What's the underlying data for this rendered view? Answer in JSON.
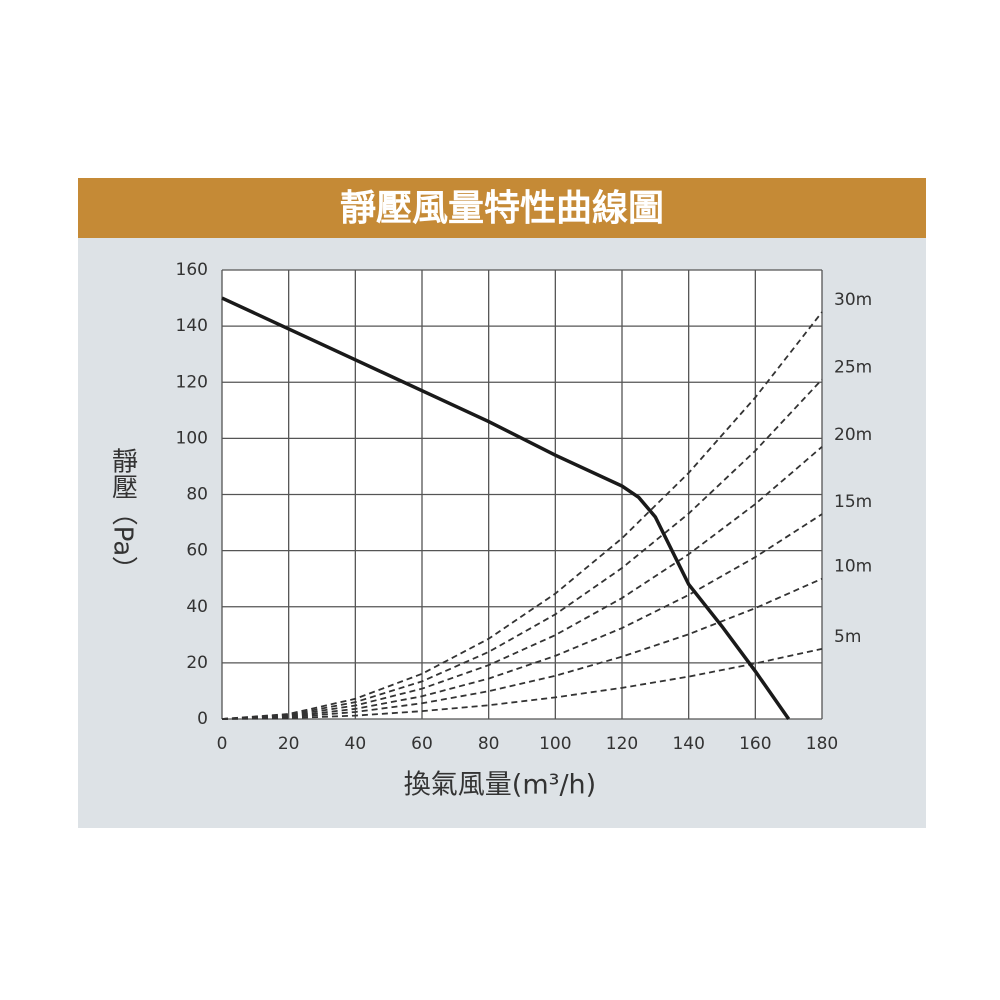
{
  "chart_data": {
    "type": "line",
    "title": "靜壓風量特性曲線圖",
    "x_label": "換氣風量(m³/h)",
    "y_label": "靜壓（Pa）",
    "xlim": [
      0,
      180
    ],
    "ylim": [
      0,
      160
    ],
    "xticks": [
      0,
      20,
      40,
      60,
      80,
      100,
      120,
      140,
      160,
      180
    ],
    "yticks": [
      0,
      20,
      40,
      60,
      80,
      100,
      120,
      140,
      160
    ],
    "grid": true,
    "main_curve": {
      "color": "#1a1a1a",
      "x": [
        0,
        20,
        40,
        60,
        80,
        100,
        120,
        125,
        130,
        135,
        140,
        150,
        160,
        170
      ],
      "values": [
        150,
        139,
        128,
        117,
        106,
        94,
        83,
        79,
        72,
        60,
        48,
        33,
        17,
        0
      ]
    },
    "series": [
      {
        "name": "30m",
        "color": "#333333",
        "style": "dashed",
        "x": [
          0,
          20,
          40,
          60,
          80,
          100,
          120,
          140,
          160,
          180
        ],
        "values": [
          0,
          1.8,
          7.2,
          16.1,
          28.6,
          44.7,
          64.4,
          87.7,
          114.6,
          145
        ]
      },
      {
        "name": "25m",
        "color": "#333333",
        "style": "dashed",
        "x": [
          0,
          20,
          40,
          60,
          80,
          100,
          120,
          140,
          160,
          180
        ],
        "values": [
          0,
          1.5,
          6.0,
          13.4,
          23.9,
          37.3,
          53.8,
          73.2,
          95.6,
          121
        ]
      },
      {
        "name": "20m",
        "color": "#333333",
        "style": "dashed",
        "x": [
          0,
          20,
          40,
          60,
          80,
          100,
          120,
          140,
          160,
          180
        ],
        "values": [
          0,
          1.2,
          4.8,
          10.8,
          19.2,
          29.9,
          43.1,
          58.7,
          76.6,
          97
        ]
      },
      {
        "name": "15m",
        "color": "#333333",
        "style": "dashed",
        "x": [
          0,
          20,
          40,
          60,
          80,
          100,
          120,
          140,
          160,
          180
        ],
        "values": [
          0,
          0.9,
          3.6,
          8.1,
          14.4,
          22.5,
          32.4,
          44.2,
          57.7,
          73
        ]
      },
      {
        "name": "10m",
        "color": "#333333",
        "style": "dashed",
        "x": [
          0,
          20,
          40,
          60,
          80,
          100,
          120,
          140,
          160,
          180
        ],
        "values": [
          0,
          0.6,
          2.5,
          5.6,
          9.9,
          15.4,
          22.2,
          30.2,
          39.5,
          50
        ]
      },
      {
        "name": "5m",
        "color": "#333333",
        "style": "dashed",
        "x": [
          0,
          20,
          40,
          60,
          80,
          100,
          120,
          140,
          160,
          180
        ],
        "values": [
          0,
          0.3,
          1.2,
          2.8,
          4.9,
          7.7,
          11.1,
          15.1,
          19.8,
          25
        ]
      }
    ]
  }
}
